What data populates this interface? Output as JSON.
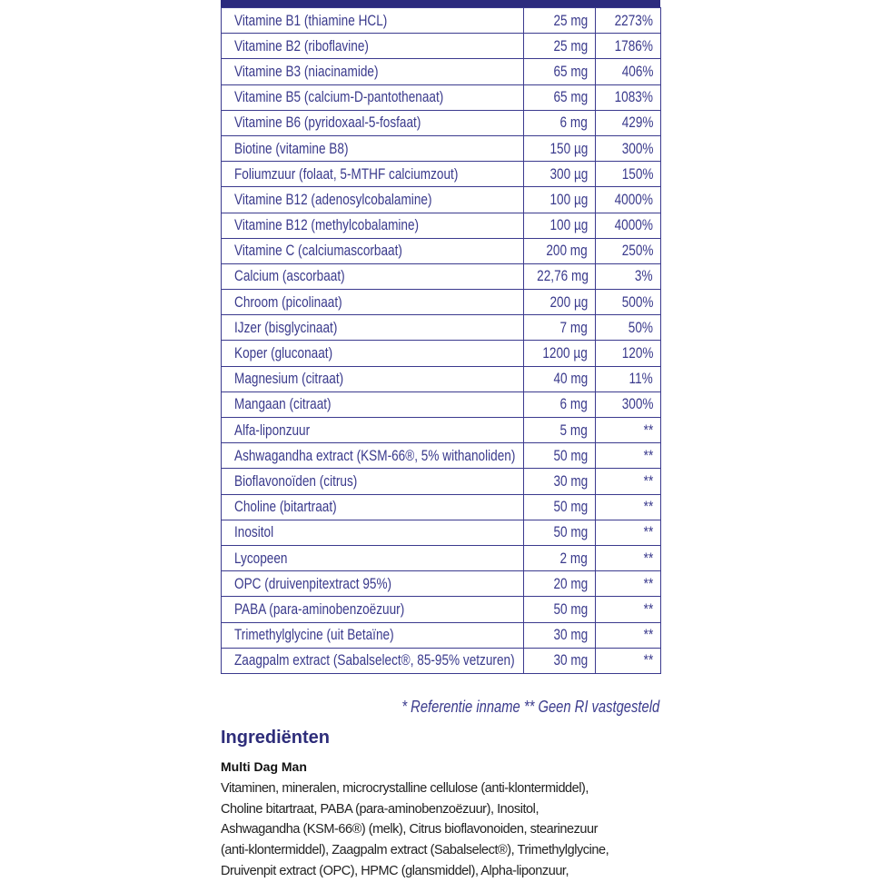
{
  "table": {
    "rows": [
      {
        "name": "Vitamine B1 (thiamine HCL)",
        "amount": "25 mg",
        "ri": "2273%"
      },
      {
        "name": "Vitamine B2 (riboflavine)",
        "amount": "25 mg",
        "ri": "1786%"
      },
      {
        "name": "Vitamine B3 (niacinamide)",
        "amount": "65 mg",
        "ri": "406%"
      },
      {
        "name": "Vitamine B5 (calcium-D-pantothenaat)",
        "amount": "65 mg",
        "ri": "1083%"
      },
      {
        "name": "Vitamine B6 (pyridoxaal-5-fosfaat)",
        "amount": "6 mg",
        "ri": "429%"
      },
      {
        "name": "Biotine (vitamine B8)",
        "amount": "150 µg",
        "ri": "300%"
      },
      {
        "name": "Foliumzuur (folaat, 5-MTHF calciumzout)",
        "amount": "300 µg",
        "ri": "150%"
      },
      {
        "name": "Vitamine B12 (adenosylcobalamine)",
        "amount": "100 µg",
        "ri": "4000%"
      },
      {
        "name": "Vitamine B12 (methylcobalamine)",
        "amount": "100 µg",
        "ri": "4000%"
      },
      {
        "name": "Vitamine C (calciumascorbaat)",
        "amount": "200 mg",
        "ri": "250%"
      },
      {
        "name": "Calcium (ascorbaat)",
        "amount": "22,76 mg",
        "ri": "3%"
      },
      {
        "name": "Chroom (picolinaat)",
        "amount": "200 µg",
        "ri": "500%"
      },
      {
        "name": "IJzer (bisglycinaat)",
        "amount": "7 mg",
        "ri": "50%"
      },
      {
        "name": "Koper (gluconaat)",
        "amount": "1200 µg",
        "ri": "120%"
      },
      {
        "name": "Magnesium (citraat)",
        "amount": "40 mg",
        "ri": "11%"
      },
      {
        "name": "Mangaan (citraat)",
        "amount": "6 mg",
        "ri": "300%"
      },
      {
        "name": "Alfa-liponzuur",
        "amount": "5 mg",
        "ri": "**"
      },
      {
        "name": "Ashwagandha extract (KSM-66®, 5% withanoliden)",
        "amount": "50 mg",
        "ri": "**"
      },
      {
        "name": "Bioflavonoïden (citrus)",
        "amount": "30 mg",
        "ri": "**"
      },
      {
        "name": "Choline (bitartraat)",
        "amount": "50 mg",
        "ri": "**"
      },
      {
        "name": "Inositol",
        "amount": "50 mg",
        "ri": "**"
      },
      {
        "name": "Lycopeen",
        "amount": "2 mg",
        "ri": "**"
      },
      {
        "name": "OPC (druivenpitextract 95%)",
        "amount": "20 mg",
        "ri": "**"
      },
      {
        "name": "PABA (para-aminobenzoëzuur)",
        "amount": "50 mg",
        "ri": "**"
      },
      {
        "name": "Trimethylglycine (uit Betaïne)",
        "amount": "30 mg",
        "ri": "**"
      },
      {
        "name": "Zaagpalm extract (Sabalselect®, 85-95% vetzuren)",
        "amount": "30 mg",
        "ri": "**"
      }
    ]
  },
  "footnote": "* Referentie inname  ** Geen RI vastgesteld",
  "ingredients": {
    "title": "Ingrediënten",
    "product": "Multi Dag Man",
    "lines": [
      "Vitaminen, mineralen, microcrystalline cellulose (anti-klontermiddel),",
      "Choline bitartraat, PABA (para-aminobenzoëzuur), Inositol,",
      "Ashwagandha (KSM-66®) (melk), Citrus bioflavonoiden, stearinezuur",
      "(anti-klontermiddel), Zaagpalm extract (Sabalselect®), Trimethylglycine,",
      "Druivenpit extract (OPC), HPMC (glansmiddel), Alpha-liponzuur,"
    ]
  },
  "colors": {
    "accent": "#2c2b7e",
    "text": "#3a3a8c"
  }
}
